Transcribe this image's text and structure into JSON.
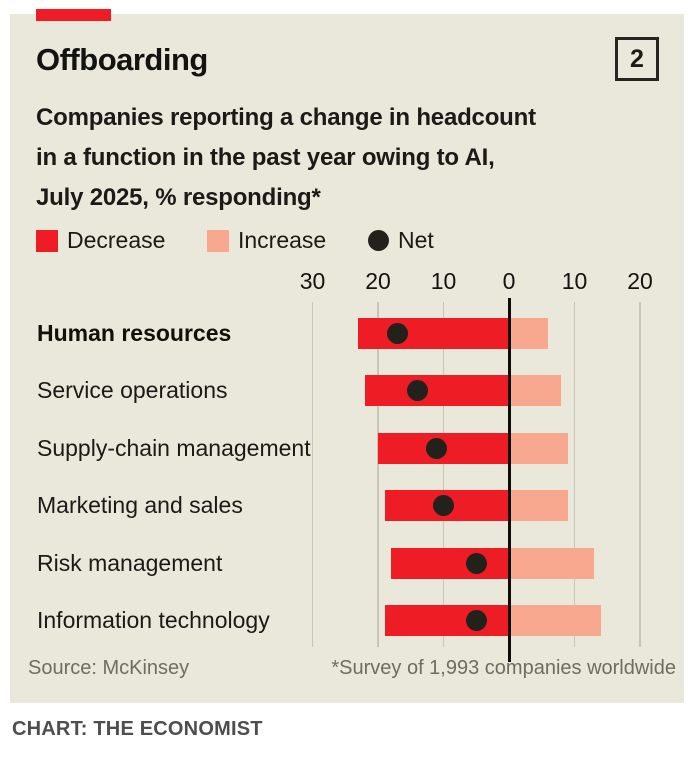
{
  "accent": {
    "red": "#ee1c25",
    "pink": "#f8a88e",
    "near_black": "#23211c",
    "card_bg": "#eae7db",
    "grid_gray": "#c7c4b8"
  },
  "header": {
    "title": "Offboarding",
    "index": "2",
    "subtitle_lines": [
      "Companies reporting a change in headcount",
      "in a function in the past year owing to AI,",
      "July 2025, % responding*"
    ]
  },
  "legend": [
    {
      "label": "Decrease",
      "shape": "square",
      "color": "#ee1c25"
    },
    {
      "label": "Increase",
      "shape": "square",
      "color": "#f8a88e"
    },
    {
      "label": "Net",
      "shape": "circle",
      "color": "#23211c"
    }
  ],
  "chart_data": {
    "type": "bar",
    "subtype": "diverging-horizontal",
    "title": "Offboarding",
    "subtitle": "Companies reporting a change in headcount in a function in the past year owing to AI, July 2025, % responding*",
    "xlabel": "% responding",
    "ylabel": "",
    "grid": true,
    "legend_position": "top",
    "axis_range": [
      -35,
      23
    ],
    "axis_ticks": [
      {
        "value": -30,
        "label": "30"
      },
      {
        "value": -20,
        "label": "20"
      },
      {
        "value": -10,
        "label": "10"
      },
      {
        "value": 0,
        "label": "0"
      },
      {
        "value": 10,
        "label": "10"
      },
      {
        "value": 20,
        "label": "20"
      }
    ],
    "categories": [
      "Human resources",
      "Service operations",
      "Supply-chain management",
      "Marketing and sales",
      "Risk management",
      "Information technology"
    ],
    "emphasized_category": "Human resources",
    "series": [
      {
        "name": "Decrease",
        "direction": "left",
        "color": "#ee1c25",
        "values": [
          23,
          22,
          20,
          19,
          18,
          19
        ]
      },
      {
        "name": "Increase",
        "direction": "right",
        "color": "#f8a88e",
        "values": [
          6,
          8,
          9,
          9,
          13,
          14
        ]
      },
      {
        "name": "Net",
        "style": "dot",
        "color": "#23211c",
        "values": [
          -17,
          -14,
          -11,
          -10,
          -5,
          -5
        ]
      }
    ]
  },
  "footer": {
    "source": "Source: McKinsey",
    "footnote": "*Survey of 1,993 companies worldwide"
  },
  "caption": "CHART: THE ECONOMIST"
}
